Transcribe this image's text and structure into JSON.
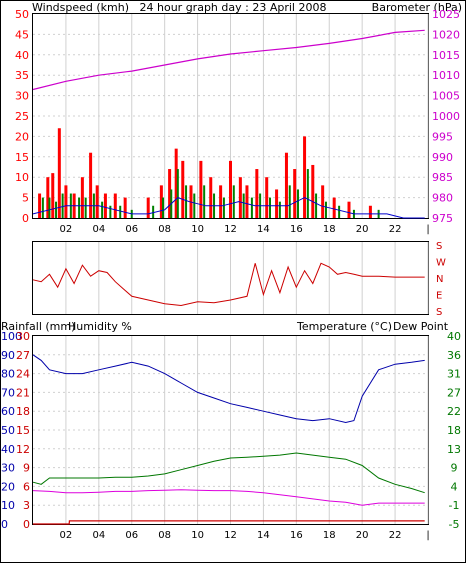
{
  "title": "24 hour graph day : 23 April 2008",
  "x_ticks": [
    "02",
    "04",
    "06",
    "08",
    "10",
    "12",
    "14",
    "16",
    "18",
    "20",
    "22",
    "|"
  ],
  "colors": {
    "wind": "#008000",
    "gust": "#ff0000",
    "avg": "#0000cc",
    "baro": "#cc00cc",
    "dir": "#cc0000",
    "hum": "#0000aa",
    "temp": "#007700",
    "dew": "#dd00dd",
    "rain": "#cc0000",
    "grid": "#d0d0d0"
  },
  "chart_data": [
    {
      "type": "bar",
      "left_axis_label": "Windspeed (kmh)",
      "right_axis_label": "Barometer (hPa)",
      "left_ticks": [
        0,
        5,
        10,
        15,
        20,
        25,
        30,
        35,
        40,
        45,
        50
      ],
      "right_ticks": [
        975,
        980,
        985,
        990,
        995,
        1000,
        1005,
        1010,
        1015,
        1020,
        1025
      ],
      "ylim": [
        0,
        50
      ],
      "ylim_right": [
        975,
        1025
      ],
      "series": [
        {
          "name": "Barometer",
          "type": "line",
          "x": [
            0,
            2,
            4,
            6,
            8,
            10,
            12,
            14,
            16,
            18,
            20,
            22,
            23.8
          ],
          "values": [
            1006.5,
            1008.5,
            1010,
            1011,
            1012.5,
            1014,
            1015.2,
            1016,
            1016.8,
            1017.8,
            1019,
            1020.5,
            1021
          ]
        }
      ],
      "gust_bars": [
        {
          "x": 0.4,
          "v": 6
        },
        {
          "x": 0.9,
          "v": 10
        },
        {
          "x": 1.2,
          "v": 11
        },
        {
          "x": 1.6,
          "v": 22
        },
        {
          "x": 2.0,
          "v": 8
        },
        {
          "x": 2.5,
          "v": 6
        },
        {
          "x": 3.0,
          "v": 10
        },
        {
          "x": 3.5,
          "v": 16
        },
        {
          "x": 3.9,
          "v": 8
        },
        {
          "x": 4.4,
          "v": 6
        },
        {
          "x": 5.0,
          "v": 6
        },
        {
          "x": 5.6,
          "v": 5
        },
        {
          "x": 7.0,
          "v": 5
        },
        {
          "x": 7.8,
          "v": 8
        },
        {
          "x": 8.3,
          "v": 12
        },
        {
          "x": 8.7,
          "v": 17
        },
        {
          "x": 9.1,
          "v": 14
        },
        {
          "x": 9.6,
          "v": 8
        },
        {
          "x": 10.2,
          "v": 14
        },
        {
          "x": 10.8,
          "v": 10
        },
        {
          "x": 11.4,
          "v": 8
        },
        {
          "x": 12.0,
          "v": 14
        },
        {
          "x": 12.6,
          "v": 10
        },
        {
          "x": 13.0,
          "v": 8
        },
        {
          "x": 13.6,
          "v": 12
        },
        {
          "x": 14.2,
          "v": 10
        },
        {
          "x": 14.8,
          "v": 7
        },
        {
          "x": 15.4,
          "v": 16
        },
        {
          "x": 15.9,
          "v": 12
        },
        {
          "x": 16.5,
          "v": 20
        },
        {
          "x": 17.0,
          "v": 13
        },
        {
          "x": 17.6,
          "v": 8
        },
        {
          "x": 18.3,
          "v": 5
        },
        {
          "x": 19.2,
          "v": 4
        },
        {
          "x": 20.5,
          "v": 3
        }
      ],
      "wind_bars": [
        {
          "x": 0.6,
          "v": 5
        },
        {
          "x": 1.0,
          "v": 5
        },
        {
          "x": 1.4,
          "v": 4
        },
        {
          "x": 1.8,
          "v": 6
        },
        {
          "x": 2.3,
          "v": 6
        },
        {
          "x": 2.8,
          "v": 5
        },
        {
          "x": 3.2,
          "v": 5
        },
        {
          "x": 3.7,
          "v": 6
        },
        {
          "x": 4.2,
          "v": 4
        },
        {
          "x": 4.7,
          "v": 3
        },
        {
          "x": 5.3,
          "v": 3
        },
        {
          "x": 6.0,
          "v": 2
        },
        {
          "x": 7.3,
          "v": 3
        },
        {
          "x": 7.9,
          "v": 5
        },
        {
          "x": 8.4,
          "v": 7
        },
        {
          "x": 8.8,
          "v": 12
        },
        {
          "x": 9.3,
          "v": 8
        },
        {
          "x": 9.8,
          "v": 6
        },
        {
          "x": 10.4,
          "v": 8
        },
        {
          "x": 11.0,
          "v": 6
        },
        {
          "x": 11.6,
          "v": 5
        },
        {
          "x": 12.2,
          "v": 8
        },
        {
          "x": 12.8,
          "v": 6
        },
        {
          "x": 13.3,
          "v": 5
        },
        {
          "x": 13.8,
          "v": 6
        },
        {
          "x": 14.4,
          "v": 5
        },
        {
          "x": 15.0,
          "v": 4
        },
        {
          "x": 15.6,
          "v": 8
        },
        {
          "x": 16.1,
          "v": 7
        },
        {
          "x": 16.7,
          "v": 12
        },
        {
          "x": 17.2,
          "v": 6
        },
        {
          "x": 17.8,
          "v": 4
        },
        {
          "x": 18.6,
          "v": 3
        },
        {
          "x": 19.5,
          "v": 2
        },
        {
          "x": 21.0,
          "v": 2
        }
      ],
      "avg_line": {
        "x": [
          0,
          1,
          2,
          3,
          4,
          5,
          6,
          7,
          8,
          8.8,
          9.5,
          10.5,
          11.5,
          12.5,
          13.5,
          14.5,
          15.5,
          16.5,
          17.5,
          18.5,
          19.5,
          20.5,
          21.5,
          22.5,
          23.8
        ],
        "values": [
          1,
          2,
          3,
          3,
          3,
          2,
          1,
          1,
          2,
          5,
          4,
          3,
          3,
          4,
          3,
          3,
          3,
          5,
          3,
          2,
          1,
          1,
          1,
          0,
          0
        ]
      }
    },
    {
      "type": "line",
      "right_axis_labels": [
        "S",
        "E",
        "N",
        "W",
        "S"
      ],
      "ylim": [
        0,
        360
      ],
      "series": [
        {
          "name": "Wind direction",
          "x": [
            0,
            0.5,
            1,
            1.5,
            2,
            2.5,
            3,
            3.5,
            4,
            4.5,
            5,
            5.5,
            6,
            7,
            8,
            9,
            10,
            11,
            12,
            13,
            13.5,
            14,
            14.5,
            15,
            15.5,
            16,
            16.5,
            17,
            17.5,
            18,
            18.5,
            19,
            19.5,
            20,
            21,
            22,
            23.8
          ],
          "values": [
            170,
            160,
            200,
            130,
            230,
            150,
            250,
            190,
            220,
            210,
            160,
            120,
            80,
            60,
            40,
            30,
            50,
            45,
            60,
            80,
            260,
            90,
            220,
            100,
            240,
            130,
            220,
            150,
            260,
            240,
            200,
            210,
            200,
            190,
            190,
            185,
            185
          ]
        }
      ]
    },
    {
      "type": "line",
      "left_axis_label": "Rainfall (mm)",
      "left_axis_label_2": "Humidity %",
      "right_axis_label": "Temperature (°C)",
      "right_axis_label_2": "Dew Point",
      "humidity_ticks": [
        0,
        10,
        20,
        30,
        40,
        50,
        60,
        70,
        80,
        90,
        100
      ],
      "rain_ticks": [
        0,
        3,
        6,
        9,
        12,
        15,
        18,
        21,
        24,
        27,
        30
      ],
      "temp_ticks": [
        -5,
        -1,
        4,
        9,
        13,
        18,
        22,
        27,
        31,
        36,
        40
      ],
      "ylim": [
        0,
        100
      ],
      "ylim_right": [
        -5,
        40
      ],
      "series": [
        {
          "name": "Humidity",
          "x": [
            0,
            0.5,
            1,
            2,
            3,
            4,
            5,
            6,
            7,
            8,
            9,
            10,
            11,
            12,
            13,
            14,
            15,
            16,
            17,
            18,
            19,
            19.5,
            20,
            21,
            22,
            23,
            23.8
          ],
          "values": [
            90,
            87,
            82,
            80,
            80,
            82,
            84,
            86,
            84,
            80,
            75,
            70,
            67,
            64,
            62,
            60,
            58,
            56,
            55,
            56,
            54,
            55,
            68,
            82,
            85,
            86,
            87
          ]
        },
        {
          "name": "Temperature",
          "x": [
            0,
            0.5,
            1,
            2,
            3,
            4,
            5,
            6,
            7,
            8,
            9,
            10,
            11,
            12,
            13,
            14,
            15,
            16,
            17,
            18,
            19,
            20,
            21,
            22,
            23,
            23.8
          ],
          "values": [
            5,
            4.5,
            6,
            6,
            6,
            6,
            6.2,
            6.2,
            6.5,
            7,
            8,
            9,
            10,
            10.8,
            11,
            11.2,
            11.5,
            12,
            11.5,
            11,
            10.5,
            9,
            6,
            4.5,
            3.5,
            2.5
          ]
        },
        {
          "name": "Dew point",
          "x": [
            0,
            1,
            2,
            3,
            4,
            5,
            6,
            7,
            8,
            9,
            10,
            11,
            12,
            13,
            14,
            15,
            16,
            17,
            18,
            19,
            20,
            21,
            22,
            23,
            23.8
          ],
          "values": [
            3,
            2.8,
            2.5,
            2.5,
            2.6,
            2.8,
            2.8,
            3,
            3.1,
            3.2,
            3.1,
            3,
            3,
            2.8,
            2.5,
            2,
            1.5,
            1,
            0.5,
            0.2,
            -0.5,
            0,
            0,
            0,
            0
          ]
        },
        {
          "name": "Rainfall",
          "x": [
            0,
            2.2,
            2.21,
            23.8
          ],
          "values": [
            0,
            0,
            0.5,
            0.5
          ]
        }
      ]
    }
  ]
}
